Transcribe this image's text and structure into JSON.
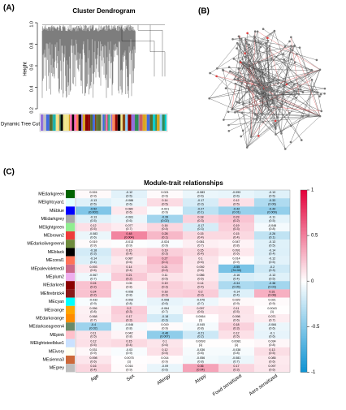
{
  "chart_data": [
    {
      "type": "dendrogram",
      "panel_label": "(A)",
      "title": "Cluster Dendrogram",
      "ylabel": "Height",
      "tree_cut_label": "Dynamic Tree Cut",
      "ylim": [
        0.2,
        1
      ],
      "yticks": [
        0.2,
        0.4,
        0.6,
        0.8,
        {
          "value": 1,
          "label": "1.0"
        }
      ]
    },
    {
      "type": "network",
      "panel_label": "(B)"
    },
    {
      "type": "heatmap",
      "panel_label": "(C)",
      "title": "Module-trait relationships",
      "rows": [
        "MEdarkgreen",
        "MElightcyan1",
        "MEblue",
        "MEdarkgrey",
        "MElightgreen",
        "MEbrown2",
        "MEdarkolivegreen4",
        "MEblack",
        "MEcoral1",
        "MEpalevioletred3",
        "MEplum2",
        "MEdarkred",
        "MEfirebrick4",
        "MEcyan",
        "MEorange",
        "MEdarkorange",
        "MEdarkseagreen4",
        "MEpink",
        "MElightsteelblue1",
        "MEivory",
        "MEsienna3",
        "MEgrey"
      ],
      "row_colors": [
        "#006400",
        "#e0ffff",
        "#0000ff",
        "#a9a9a9",
        "#90ee90",
        "#ee3b3b",
        "#6e8b3d",
        "#000000",
        "#ff7256",
        "#cd6889",
        "#eeaeee",
        "#8b0000",
        "#8b1a1a",
        "#00ffff",
        "#ffa500",
        "#ff8c00",
        "#698b69",
        "#ffc0cb",
        "#cae1ff",
        "#fffff0",
        "#cd6839",
        "#bebebe"
      ],
      "columns": [
        "Age",
        "Sex",
        "Allergy",
        "Atopy",
        "Food sensitized",
        "Aero sensitized"
      ],
      "values": [
        [
          0.024,
          -0.12,
          0.021,
          -0.083,
          -0.093,
          -0.13
        ],
        [
          -0.13,
          -0.086,
          0.14,
          -0.17,
          0.12,
          -0.33
        ],
        [
          -0.52,
          0.089,
          -0.021,
          -0.27,
          -0.42,
          -0.44
        ],
        [
          -0.13,
          -0.081,
          -0.39,
          0.18,
          0.23,
          -0.11
        ],
        [
          0.12,
          0.077,
          0.16,
          -0.17,
          0.19,
          -0.046
        ],
        [
          -0.083,
          0.48,
          0.28,
          0.15,
          0.15,
          -0.26
        ],
        [
          0.019,
          -0.013,
          -0.024,
          0.061,
          0.047,
          -0.13
        ],
        [
          -0.18,
          0.15,
          0.19,
          0.15,
          0.091,
          -0.14
        ],
        [
          -0.14,
          0.087,
          0.27,
          0.1,
          0.014,
          -0.12
        ],
        [
          0.093,
          0.14,
          0.21,
          0.092,
          -0.55,
          -0.2
        ],
        [
          -0.067,
          0.21,
          0.11,
          0.086,
          -0.16,
          -0.13
        ],
        [
          0.24,
          0.05,
          0.19,
          0.14,
          -0.34,
          -0.38
        ],
        [
          0.24,
          -0.056,
          0.18,
          0.2,
          -0.14,
          0.31
        ],
        [
          -0.032,
          -0.052,
          -0.098,
          -0.076,
          0.029,
          0.021
        ],
        [
          0.056,
          0.2,
          -0.064,
          0.097,
          0.11,
          0.0043
        ],
        [
          0.068,
          0.17,
          -0.18,
          0.0064,
          0.098,
          0.071
        ],
        [
          -0.4,
          -0.046,
          0.019,
          -0.045,
          0.18,
          -0.084
        ],
        [
          0.11,
          0.042,
          -0.46,
          -0.21,
          0.12,
          -0.1
        ],
        [
          0.12,
          0.15,
          0.1,
          0.0093,
          0.0081,
          0.034
        ],
        [
          0.031,
          -0.03,
          0.12,
          -0.036,
          -0.038,
          0.13
        ],
        [
          0.098,
          0.0075,
          0.014,
          -0.056,
          -0.081,
          0.085
        ],
        [
          0.16,
          0.016,
          -0.09,
          0.36,
          0.17,
          0.097
        ]
      ],
      "p_labels": [
        [
          "(0.9)",
          "(0.5)",
          "(0.9)",
          "(0.6)",
          "(0.6)",
          "(0.5)"
        ],
        [
          "(0.5)",
          "(0.6)",
          "(0.5)",
          "(0.3)",
          "(0.5)",
          "(0.06)"
        ],
        [
          "(0.002)",
          "(0.6)",
          "(0.9)",
          "(0.1)",
          "(0.01)",
          "(0.009)"
        ],
        [
          "(0.5)",
          "(0.6)",
          "(0.02)",
          "(0.3)",
          "(0.2)",
          "(0.5)"
        ],
        [
          "(0.5)",
          "(0.7)",
          "(0.4)",
          "(0.3)",
          "(0.3)",
          "(0.8)"
        ],
        [
          "(0.6)",
          "(0.004)",
          "(0.1)",
          "(0.4)",
          "(0.4)",
          "(0.1)"
        ],
        [
          "(0.9)",
          "(0.9)",
          "(0.9)",
          "(0.7)",
          "(0.8)",
          "(0.5)"
        ],
        [
          "(0.3)",
          "(0.4)",
          "(0.3)",
          "(0.4)",
          "(0.6)",
          "(0.4)"
        ],
        [
          "(0.4)",
          "(0.6)",
          "(0.1)",
          "(0.6)",
          "(0.9)",
          "(0.5)"
        ],
        [
          "(0.6)",
          "(0.4)",
          "(0.2)",
          "(0.6)",
          "(7e-04)",
          "(0.3)"
        ],
        [
          "(0.7)",
          "(0.2)",
          "(0.5)",
          "(0.6)",
          "(0.4)",
          "(0.5)"
        ],
        [
          "(0.2)",
          "(0.8)",
          "(0.3)",
          "(0.4)",
          "(0.05)",
          "(0.03)"
        ],
        [
          "(0.2)",
          "(0.8)",
          "(0.3)",
          "(0.3)",
          "(0.4)",
          "(0.08)"
        ],
        [
          "(0.9)",
          "(0.8)",
          "(0.6)",
          "(0.7)",
          "(0.9)",
          "(0.9)"
        ],
        [
          "(0.8)",
          "(0.3)",
          "(0.7)",
          "(0.6)",
          "(0.5)",
          "(1)"
        ],
        [
          "(0.7)",
          "(0.3)",
          "(0.3)",
          "(1)",
          "(0.6)",
          "(0.7)"
        ],
        [
          "(0.02)",
          "(0.8)",
          "(0.9)",
          "(0.8)",
          "(0.3)",
          "(0.6)"
        ],
        [
          "(0.5)",
          "(0.8)",
          "(0.007)",
          "(0.2)",
          "(0.5)",
          "(0.6)"
        ],
        [
          "(0.5)",
          "(0.4)",
          "(0.6)",
          "(1)",
          "(1)",
          "(0.8)"
        ],
        [
          "(0.9)",
          "(0.9)",
          "(0.5)",
          "(0.8)",
          "(0.8)",
          "(0.5)"
        ],
        [
          "(0.6)",
          "(1)",
          "(0.9)",
          "(0.8)",
          "(0.7)",
          "(0.6)"
        ],
        [
          "(0.4)",
          "(0.9)",
          "(0.6)",
          "(0.04)",
          "(0.3)",
          "(0.6)"
        ]
      ],
      "zlim": [
        -1,
        1
      ],
      "zticks": [
        1,
        0.5,
        0,
        -0.5,
        -1
      ],
      "colors": {
        "low": "#0c92d2",
        "mid": "#ffffff",
        "high": "#e4003a"
      }
    }
  ]
}
